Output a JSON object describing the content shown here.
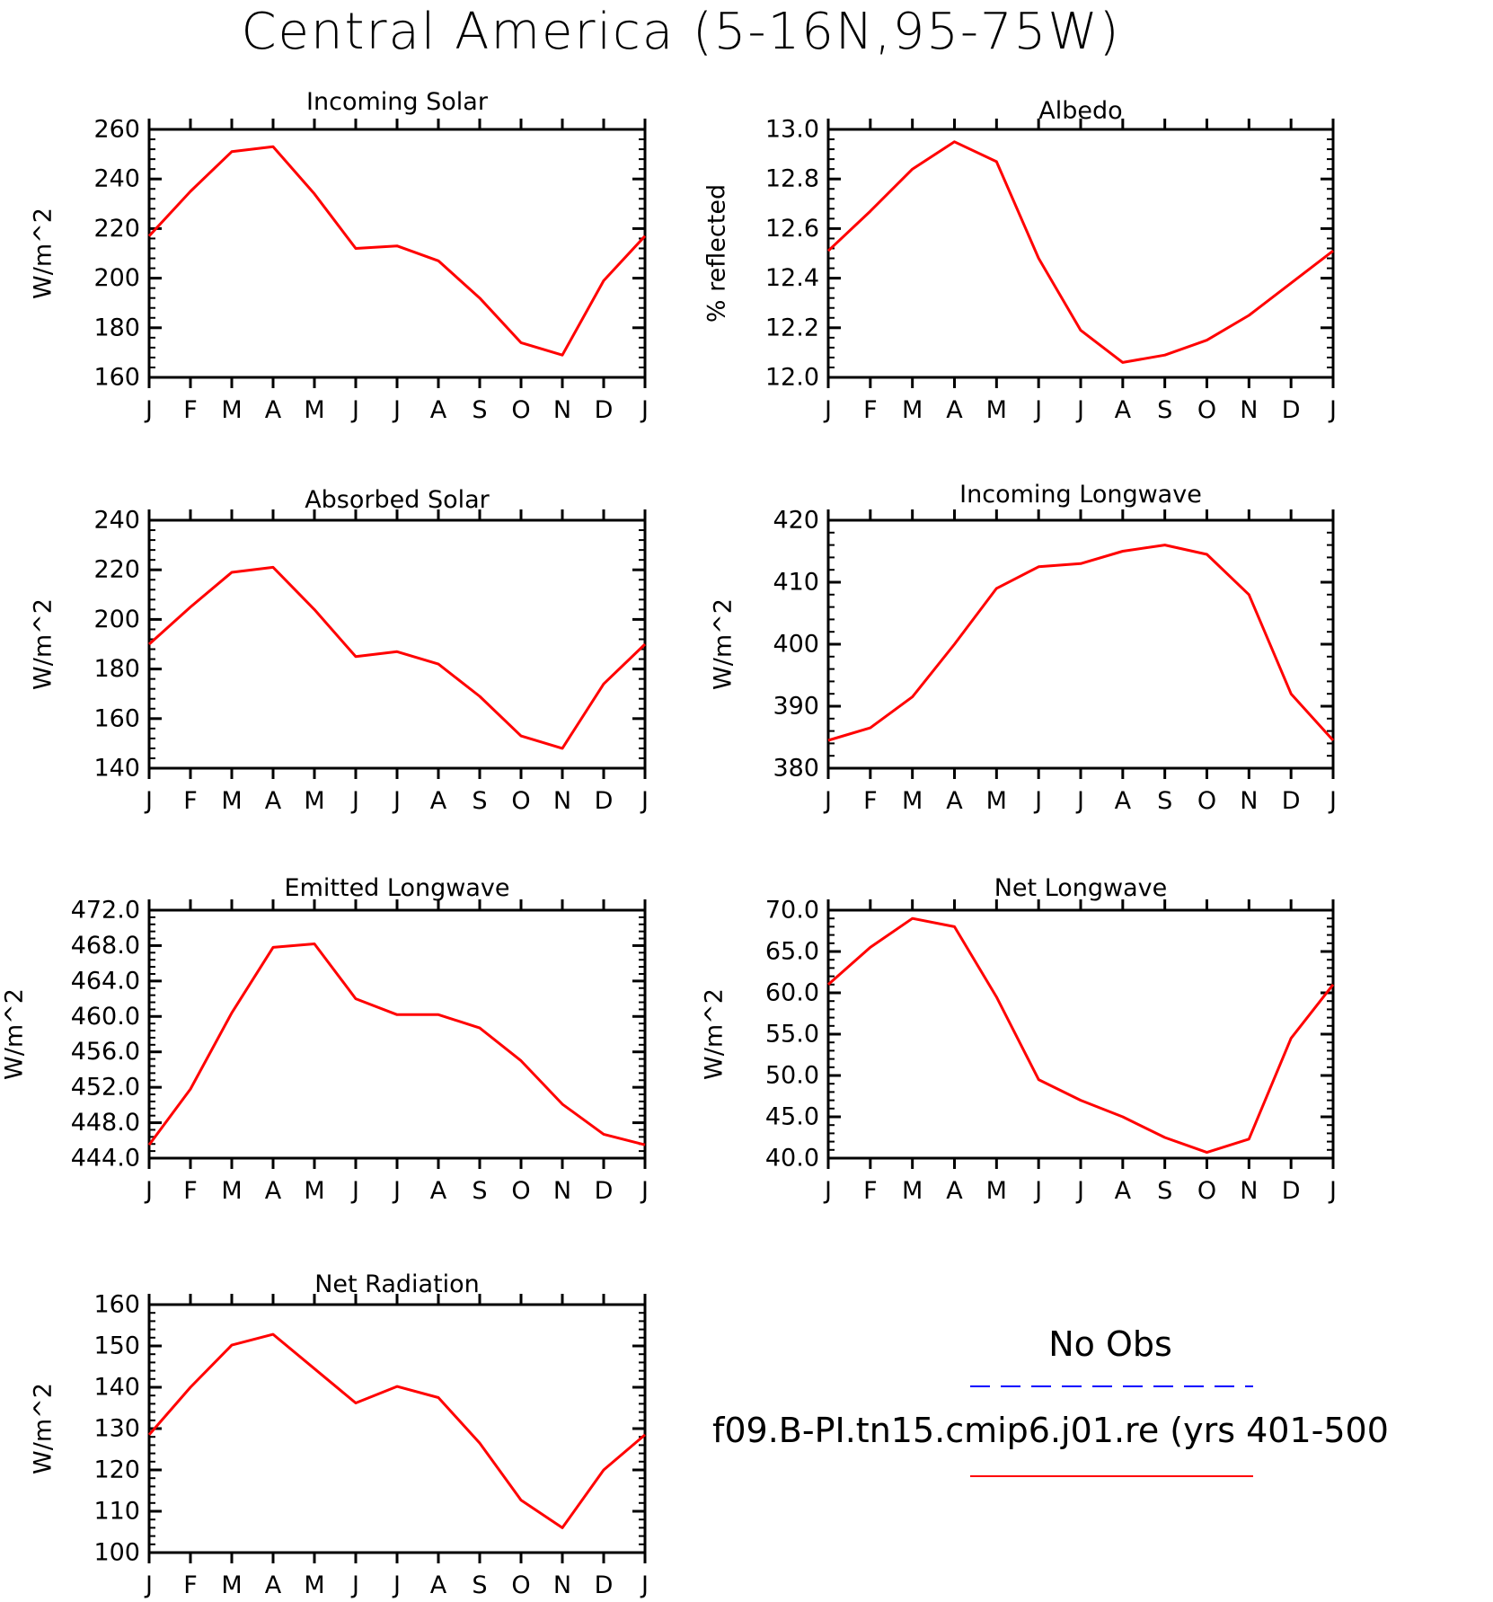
{
  "title": "Central America (5-16N,95-75W)",
  "legend": {
    "items": [
      {
        "label": "No Obs",
        "color": "#0000ff",
        "style": "dashed"
      },
      {
        "label": "f09.B-PI.tn15.cmip6.j01.re (yrs 401-500",
        "color": "#ff0000",
        "style": "solid"
      }
    ]
  },
  "colors": {
    "model": "#ff0000",
    "obs": "#0000ff",
    "axis": "#000000"
  },
  "chart_data": [
    {
      "type": "line",
      "title": "Incoming Solar",
      "ylabel": "W/m^2",
      "x": [
        "J",
        "F",
        "M",
        "A",
        "M",
        "J",
        "J",
        "A",
        "S",
        "O",
        "N",
        "D",
        "J"
      ],
      "ylim": [
        160,
        260
      ],
      "yticks": [
        160,
        180,
        200,
        220,
        240,
        260
      ],
      "ytick_labels": [
        "160",
        "180",
        "200",
        "220",
        "240",
        "260"
      ],
      "series": [
        {
          "values": [
            217,
            235,
            251,
            253,
            234,
            212,
            213,
            207,
            192,
            174,
            169,
            199,
            217
          ]
        }
      ]
    },
    {
      "type": "line",
      "title": "Albedo",
      "ylabel": "% reflected",
      "x": [
        "J",
        "F",
        "M",
        "A",
        "M",
        "J",
        "J",
        "A",
        "S",
        "O",
        "N",
        "D",
        "J"
      ],
      "ylim": [
        12.0,
        13.0
      ],
      "yticks": [
        12.0,
        12.2,
        12.4,
        12.6,
        12.8,
        13.0
      ],
      "ytick_labels": [
        "12.0",
        "12.2",
        "12.4",
        "12.6",
        "12.8",
        "13.0"
      ],
      "series": [
        {
          "values": [
            12.51,
            12.67,
            12.84,
            12.95,
            12.87,
            12.48,
            12.19,
            12.06,
            12.09,
            12.15,
            12.25,
            12.38,
            12.51
          ]
        }
      ]
    },
    {
      "type": "line",
      "title": "Absorbed Solar",
      "ylabel": "W/m^2",
      "x": [
        "J",
        "F",
        "M",
        "A",
        "M",
        "J",
        "J",
        "A",
        "S",
        "O",
        "N",
        "D",
        "J"
      ],
      "ylim": [
        140,
        240
      ],
      "yticks": [
        140,
        160,
        180,
        200,
        220,
        240
      ],
      "ytick_labels": [
        "140",
        "160",
        "180",
        "200",
        "220",
        "240"
      ],
      "series": [
        {
          "values": [
            190,
            205,
            219,
            221,
            204,
            185,
            187,
            182,
            169,
            153,
            148,
            174,
            190
          ]
        }
      ]
    },
    {
      "type": "line",
      "title": "Incoming Longwave",
      "ylabel": "W/m^2",
      "x": [
        "J",
        "F",
        "M",
        "A",
        "M",
        "J",
        "J",
        "A",
        "S",
        "O",
        "N",
        "D",
        "J"
      ],
      "ylim": [
        380,
        420
      ],
      "yticks": [
        380,
        390,
        400,
        410,
        420
      ],
      "ytick_labels": [
        "380",
        "390",
        "400",
        "410",
        "420"
      ],
      "series": [
        {
          "values": [
            384.5,
            386.5,
            391.5,
            400,
            409,
            412.5,
            413,
            415,
            416,
            414.5,
            408,
            392,
            384.5
          ]
        }
      ]
    },
    {
      "type": "line",
      "title": "Emitted Longwave",
      "ylabel": "W/m^2",
      "x": [
        "J",
        "F",
        "M",
        "A",
        "M",
        "J",
        "J",
        "A",
        "S",
        "O",
        "N",
        "D",
        "J"
      ],
      "ylim": [
        444,
        472
      ],
      "yticks": [
        444,
        448,
        452,
        456,
        460,
        464,
        468,
        472
      ],
      "ytick_labels": [
        "444.0",
        "448.0",
        "452.0",
        "456.0",
        "460.0",
        "464.0",
        "468.0",
        "472.0"
      ],
      "series": [
        {
          "values": [
            445.5,
            451.8,
            460.4,
            467.8,
            468.2,
            462.0,
            460.2,
            460.2,
            458.7,
            455.0,
            450.1,
            446.7,
            445.5
          ]
        }
      ]
    },
    {
      "type": "line",
      "title": "Net Longwave",
      "ylabel": "W/m^2",
      "x": [
        "J",
        "F",
        "M",
        "A",
        "M",
        "J",
        "J",
        "A",
        "S",
        "O",
        "N",
        "D",
        "J"
      ],
      "ylim": [
        40,
        70
      ],
      "yticks": [
        40,
        45,
        50,
        55,
        60,
        65,
        70
      ],
      "ytick_labels": [
        "40.0",
        "45.0",
        "50.0",
        "55.0",
        "60.0",
        "65.0",
        "70.0"
      ],
      "series": [
        {
          "values": [
            61.0,
            65.5,
            69.0,
            68.0,
            59.5,
            49.5,
            47.0,
            45.0,
            42.5,
            40.7,
            42.3,
            54.5,
            61.0
          ]
        }
      ]
    },
    {
      "type": "line",
      "title": "Net Radiation",
      "ylabel": "W/m^2",
      "x": [
        "J",
        "F",
        "M",
        "A",
        "M",
        "J",
        "J",
        "A",
        "S",
        "O",
        "N",
        "D",
        "J"
      ],
      "ylim": [
        100,
        160
      ],
      "yticks": [
        100,
        110,
        120,
        130,
        140,
        150,
        160
      ],
      "ytick_labels": [
        "100",
        "110",
        "120",
        "130",
        "140",
        "150",
        "160"
      ],
      "series": [
        {
          "values": [
            128.5,
            140,
            150.2,
            152.8,
            144.5,
            136.2,
            140.2,
            137.5,
            126.5,
            112.7,
            106,
            120,
            128.5
          ]
        }
      ]
    }
  ]
}
